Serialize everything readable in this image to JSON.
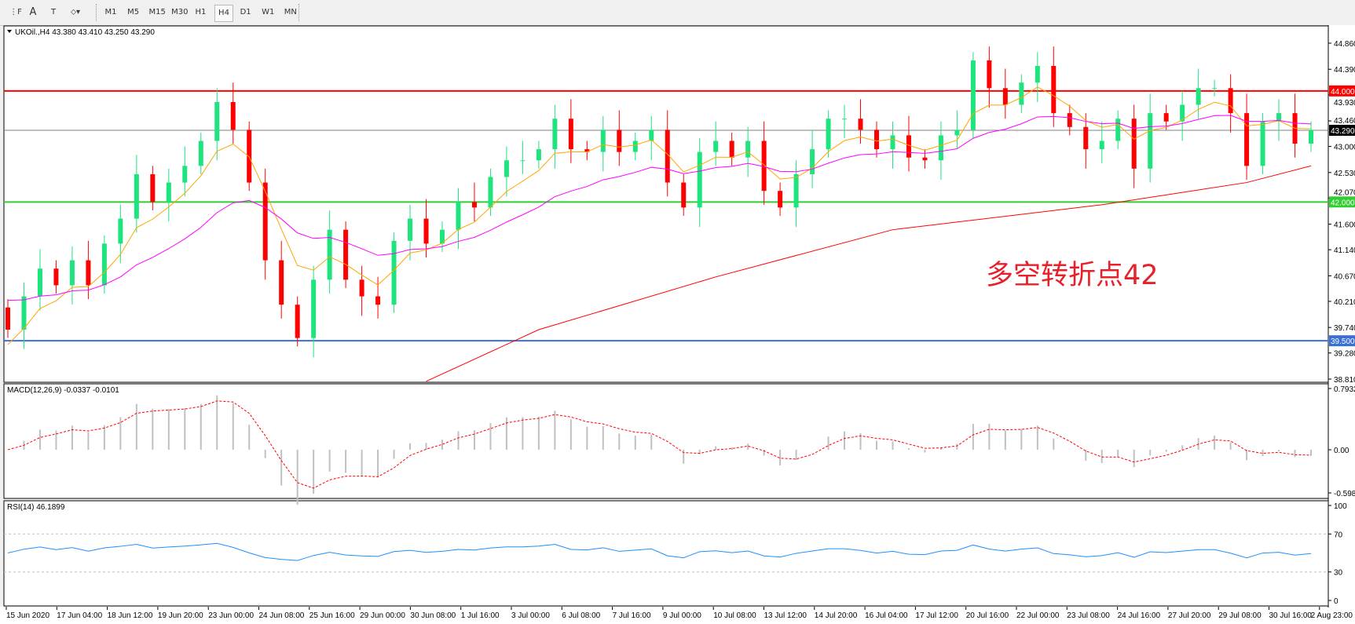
{
  "toolbar": {
    "tools": [
      {
        "name": "grid-icon",
        "glyph": "⋮F"
      },
      {
        "name": "text-icon",
        "glyph": "A"
      },
      {
        "name": "text-label-icon",
        "glyph": "T"
      },
      {
        "name": "arrows-icon",
        "glyph": "⬦▾"
      }
    ],
    "timeframes": [
      "M1",
      "M5",
      "M15",
      "M30",
      "H1",
      "H4",
      "D1",
      "W1",
      "MN"
    ],
    "active_timeframe": "H4"
  },
  "chart": {
    "header": "UKOil.,H4  43.380 43.410 43.250 43.290",
    "annotation": "多空转折点42",
    "colors": {
      "bull": "#1de47d",
      "bear": "#ff0000",
      "ma_fast": "#ffa500",
      "ma_mid": "#ff00ff",
      "ma_slow": "#ff0000",
      "rsi": "#1e90ff",
      "macd_hist": "#c0c0c0",
      "macd_signal": "#ff0000"
    },
    "price_ticks": [
      "44.860",
      "44.390",
      "43.930",
      "43.460",
      "43.000",
      "42.530",
      "42.070",
      "41.600",
      "41.140",
      "40.670",
      "40.210",
      "39.740",
      "39.280",
      "38.810"
    ],
    "levels": [
      {
        "price": 44.0,
        "label": "44.000",
        "color": "#ff0000"
      },
      {
        "price": 43.29,
        "label": "43.290",
        "color": "#000000",
        "line": "#808080"
      },
      {
        "price": 42.0,
        "label": "42.000",
        "color": "#32cd32"
      },
      {
        "price": 39.5,
        "label": "39.500",
        "color": "#3a6fd8"
      }
    ],
    "closes": [
      39.7,
      40.3,
      40.8,
      40.5,
      40.95,
      40.5,
      41.25,
      41.7,
      42.5,
      42.0,
      42.35,
      42.65,
      43.1,
      43.8,
      43.3,
      42.35,
      40.95,
      40.15,
      39.55,
      40.6,
      41.5,
      40.6,
      40.3,
      40.15,
      41.3,
      41.7,
      41.25,
      41.5,
      42.0,
      41.9,
      42.45,
      42.75,
      42.75,
      42.95,
      43.5,
      42.95,
      42.9,
      43.3,
      42.9,
      43.1,
      43.3,
      42.35,
      41.9,
      42.9,
      43.1,
      42.8,
      43.1,
      42.2,
      41.9,
      42.5,
      42.95,
      43.5,
      43.5,
      43.3,
      42.95,
      43.2,
      42.8,
      42.75,
      43.2,
      43.3,
      44.55,
      44.05,
      43.75,
      44.15,
      44.45,
      43.6,
      43.35,
      42.95,
      43.1,
      43.5,
      42.6,
      43.6,
      43.45,
      43.75,
      44.05,
      44.05,
      43.6,
      42.65,
      43.45,
      43.6,
      43.05,
      43.3
    ],
    "ma_slow": [
      [
        26,
        38.77
      ],
      [
        33,
        39.7
      ],
      [
        44,
        40.65
      ],
      [
        55,
        41.5
      ],
      [
        68,
        41.95
      ],
      [
        77,
        42.35
      ],
      [
        81,
        42.65
      ]
    ]
  },
  "macd": {
    "label": "MACD(12,26,9) -0.0337 -0.0101",
    "ticks": [
      "0.7932",
      "0.00",
      "-0.5981"
    ]
  },
  "rsi": {
    "label": "RSI(14) 46.1899",
    "ticks": [
      "100",
      "70",
      "30",
      "0"
    ]
  },
  "time_labels": [
    "15 Jun 2020",
    "17 Jun 04:00",
    "18 Jun 12:00",
    "19 Jun 20:00",
    "23 Jun 00:00",
    "24 Jun 08:00",
    "25 Jun 16:00",
    "29 Jun 00:00",
    "30 Jun 08:00",
    "1 Jul 16:00",
    "3 Jul 00:00",
    "6 Jul 08:00",
    "7 Jul 16:00",
    "9 Jul 00:00",
    "10 Jul 08:00",
    "13 Jul 12:00",
    "14 Jul 20:00",
    "16 Jul 04:00",
    "17 Jul 12:00",
    "20 Jul 16:00",
    "22 Jul 00:00",
    "23 Jul 08:00",
    "24 Jul 16:00",
    "27 Jul 20:00",
    "29 Jul 08:00",
    "30 Jul 16:00",
    "2 Aug 23:00"
  ]
}
